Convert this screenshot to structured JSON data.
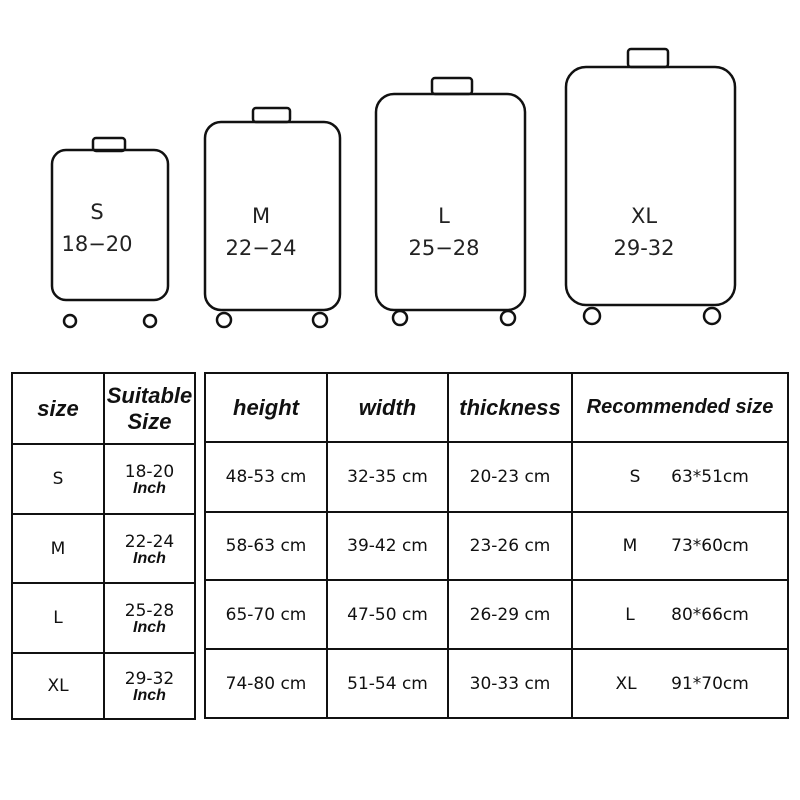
{
  "suitcases": [
    {
      "size": "S",
      "range": "18−20"
    },
    {
      "size": "M",
      "range": "22−24"
    },
    {
      "size": "L",
      "range": "25−28"
    },
    {
      "size": "XL",
      "range": "29-32"
    }
  ],
  "left_table": {
    "headers": [
      "size",
      "Suitable",
      "Size"
    ],
    "unit": "Inch",
    "rows": [
      {
        "size": "S",
        "suitable": "18-20"
      },
      {
        "size": "M",
        "suitable": "22-24"
      },
      {
        "size": "L",
        "suitable": "25-28"
      },
      {
        "size": "XL",
        "suitable": "29-32"
      }
    ]
  },
  "right_table": {
    "headers": [
      "height",
      "width",
      "thickness",
      "Recommended size"
    ],
    "rows": [
      {
        "height": "48-53 cm",
        "width": "32-35 cm",
        "thickness": "20-23 cm",
        "rec_size": "S",
        "rec_dim": "63*51cm"
      },
      {
        "height": "58-63 cm",
        "width": "39-42 cm",
        "thickness": "23-26 cm",
        "rec_size": "M",
        "rec_dim": "73*60cm"
      },
      {
        "height": "65-70 cm",
        "width": "47-50 cm",
        "thickness": "26-29 cm",
        "rec_size": "L",
        "rec_dim": "80*66cm"
      },
      {
        "height": "74-80 cm",
        "width": "51-54 cm",
        "thickness": "30-33 cm",
        "rec_size": "XL",
        "rec_dim": "91*70cm"
      }
    ]
  }
}
